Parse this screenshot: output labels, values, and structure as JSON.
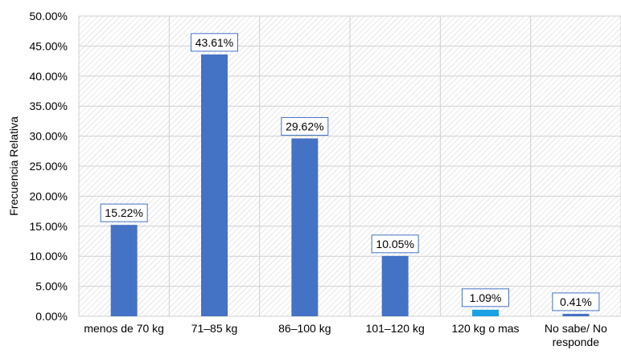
{
  "chart_data": {
    "type": "bar",
    "ylabel": "Frecuencia Relativa",
    "xlabel": "",
    "title": "",
    "categories": [
      "menos de 70 kg",
      "71–85 kg",
      "86–100 kg",
      "101–120 kg",
      "120 kg o mas",
      "No sabe/ No responde"
    ],
    "values": [
      15.22,
      43.61,
      29.62,
      10.05,
      1.09,
      0.41
    ],
    "data_labels": [
      "15.22%",
      "43.61%",
      "29.62%",
      "10.05%",
      "1.09%",
      "0.41%"
    ],
    "bar_colors": [
      "#4472C4",
      "#4472C4",
      "#4472C4",
      "#4472C4",
      "#1BA1E2",
      "#4472C4"
    ],
    "ylim": [
      0,
      50
    ],
    "yticks": [
      0,
      5,
      10,
      15,
      20,
      25,
      30,
      35,
      40,
      45,
      50
    ],
    "ytick_labels": [
      "0.00%",
      "5.00%",
      "10.00%",
      "15.00%",
      "20.00%",
      "25.00%",
      "30.00%",
      "35.00%",
      "40.00%",
      "45.00%",
      "50.00%"
    ],
    "background": "hatched",
    "grid": true
  }
}
